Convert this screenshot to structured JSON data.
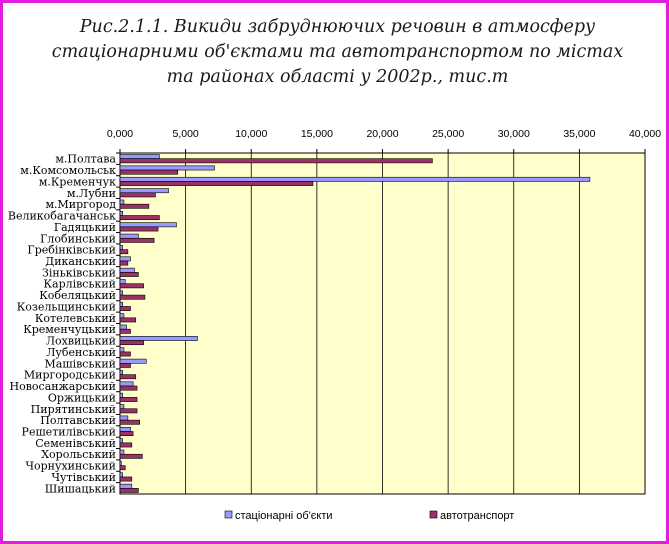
{
  "chart_data": {
    "type": "bar",
    "orientation": "horizontal",
    "title_lines": [
      "Рис.2.1.1. Викиди забруднюючих речовин в атмосферу",
      "стаціонарними об'єктами та автотранспортом по містах",
      "та районах області у 2002р., тис.т"
    ],
    "x_ticks": [
      "0,000",
      "5,000",
      "10,000",
      "15,000",
      "20,000",
      "25,000",
      "30,000",
      "35,000",
      "40,000"
    ],
    "xlim": [
      0,
      40
    ],
    "x_axis_position": "top",
    "grid": "vertical",
    "legend_position": "bottom",
    "categories": [
      "м.Полтава",
      "м.Комсомольськ",
      "м.Кременчук",
      "м.Лубни",
      "м.Миргород",
      "Великобагачанськ",
      "Гадяцький",
      "Глобинський",
      "Гребінківський",
      "Диканський",
      "Зіньківський",
      "Карлівський",
      "Кобеляцький",
      "Козельщинський",
      "Котелевський",
      "Кременчуцький",
      "Лохвицький",
      "Лубенський",
      "Машівський",
      "Миргородський",
      "Новосанжарський",
      "Оржицький",
      "Пирятинський",
      "Полтавський",
      "Решетилівський",
      "Семенівський",
      "Хорольський",
      "Чорнухинський",
      "Чутівський",
      "Шишацький"
    ],
    "series": [
      {
        "name": "стаціонарні об'єкти",
        "color": "#9999ff",
        "values": [
          3.0,
          7.2,
          35.8,
          3.7,
          0.3,
          0.2,
          4.3,
          1.4,
          0.2,
          0.8,
          1.1,
          0.4,
          0.2,
          0.2,
          0.3,
          0.5,
          5.9,
          0.3,
          2.0,
          0.2,
          1.0,
          0.2,
          0.3,
          0.6,
          0.8,
          0.2,
          0.3,
          0.1,
          0.2,
          0.9
        ]
      },
      {
        "name": "автотранспорт",
        "color": "#993366",
        "values": [
          23.8,
          4.4,
          14.7,
          2.7,
          2.2,
          3.0,
          2.9,
          2.6,
          0.6,
          0.6,
          1.4,
          1.8,
          1.9,
          0.8,
          1.2,
          0.8,
          1.8,
          0.8,
          0.8,
          1.2,
          1.3,
          1.3,
          1.3,
          1.5,
          1.0,
          0.9,
          1.7,
          0.4,
          0.9,
          1.4
        ]
      }
    ]
  }
}
